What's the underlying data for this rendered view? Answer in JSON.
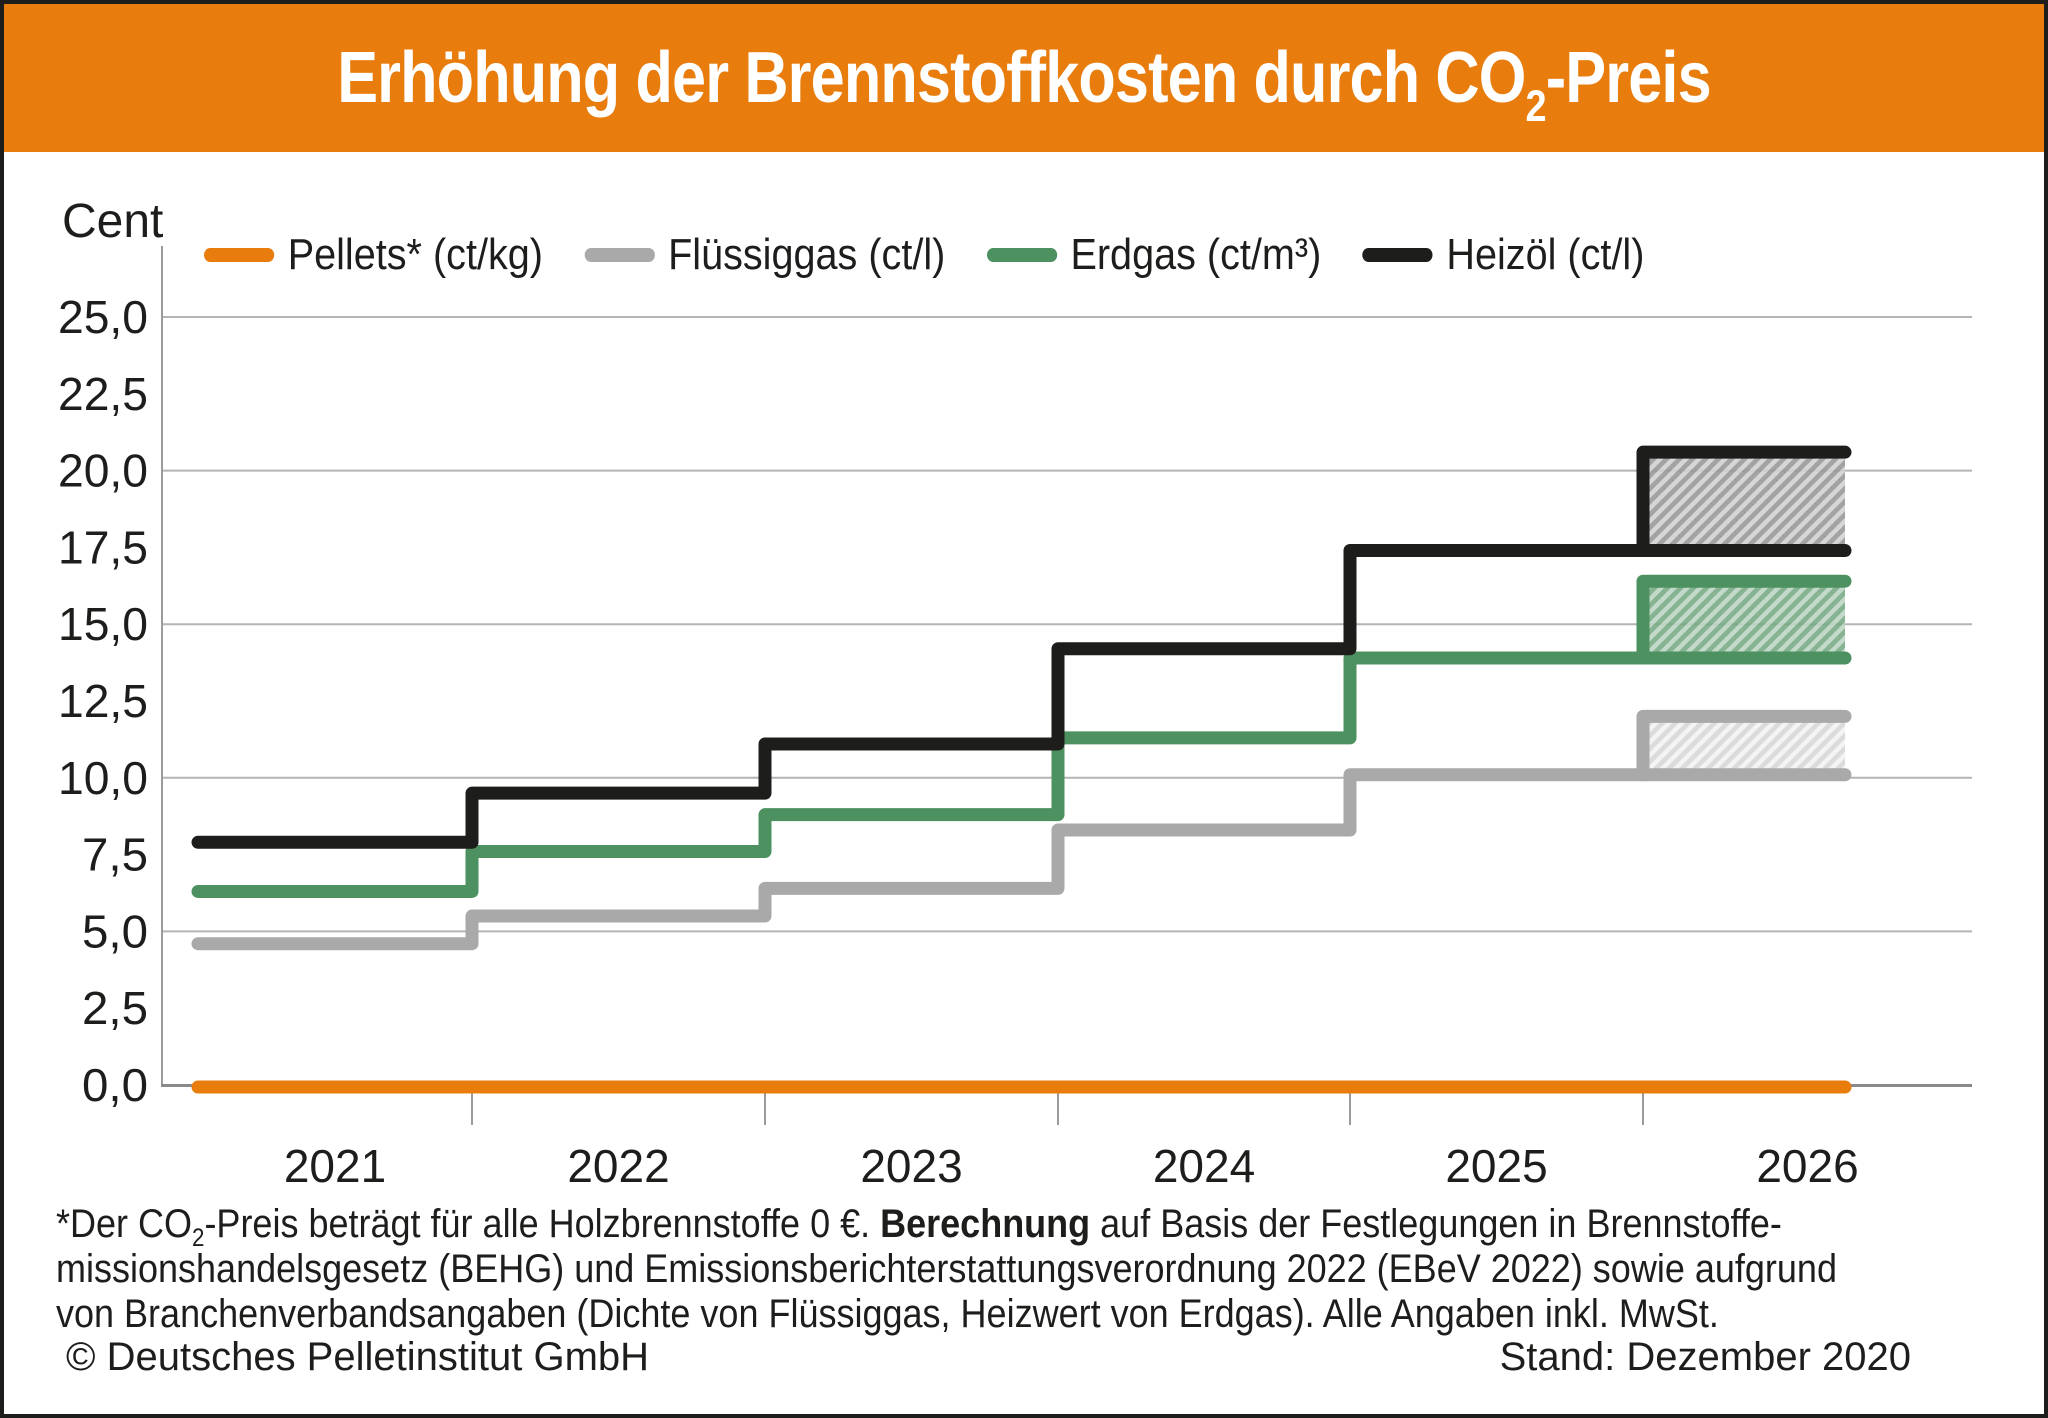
{
  "header": {
    "title_part1": "Erhöhung der Brennstoffkosten durch CO",
    "title_sub": "2",
    "title_part2": "-Preis"
  },
  "chart_data": {
    "type": "line",
    "subtype": "step",
    "title": "Erhöhung der Brennstoffkosten durch CO2-Preis",
    "unit_label": "Cent",
    "x_categories": [
      "2021",
      "2022",
      "2023",
      "2024",
      "2025",
      "2026"
    ],
    "ylim": [
      0,
      25
    ],
    "y_tick_step": 2.5,
    "y_gridline_step": 5,
    "grid": true,
    "legend_position": "top",
    "y_tick_labels": [
      "0,0",
      "2,5",
      "5,0",
      "7,5",
      "10,0",
      "12,5",
      "15,0",
      "17,5",
      "20,0",
      "22,5",
      "25,0"
    ],
    "series": [
      {
        "key": "pellets",
        "name": "Pellets* (ct/kg)",
        "color": "#e87d0e",
        "values_2021_2025": [
          0,
          0,
          0,
          0,
          0
        ],
        "range_2026": {
          "min": 0,
          "max": 0
        },
        "hatch": null
      },
      {
        "key": "fluessiggas",
        "name": "Flüssiggas (ct/l)",
        "color": "#a9a9a9",
        "values_2021_2025": [
          4.6,
          5.5,
          6.4,
          8.3,
          10.1
        ],
        "range_2026": {
          "min": 10.1,
          "max": 12.0
        },
        "hatch": {
          "base": "#d7d7d7",
          "stripe_opacity": 0.7
        }
      },
      {
        "key": "erdgas",
        "name": "Erdgas (ct/m³)",
        "color": "#4e9160",
        "values_2021_2025": [
          6.3,
          7.6,
          8.8,
          11.3,
          13.9
        ],
        "range_2026": {
          "min": 13.9,
          "max": 16.4
        },
        "hatch": {
          "base": "#79aa86",
          "stripe_opacity": 0.5
        }
      },
      {
        "key": "heizoel",
        "name": "Heizöl (ct/l)",
        "color": "#1d1d1b",
        "values_2021_2025": [
          7.9,
          9.5,
          11.1,
          14.2,
          17.4
        ],
        "range_2026": {
          "min": 17.4,
          "max": 20.6
        },
        "hatch": {
          "base": "#999999",
          "stripe_opacity": 0.55
        }
      }
    ]
  },
  "footnote": {
    "line1_a": "*Der CO",
    "line1_sub": "2",
    "line1_b": "-Preis beträgt für alle Holzbrennstoffe 0 €. ",
    "line1_bold": "Berechnung",
    "line1_c": " auf Basis der Festlegungen in Brennstoffe-",
    "line2": "missionshandelsgesetz (BEHG) und Emissionsberichterstattungsverordnung 2022 (EBeV 2022) sowie aufgrund",
    "line3": "von Branchenverbandsangaben (Dichte von Flüssiggas, Heizwert von Erdgas). Alle Angaben inkl. MwSt."
  },
  "credit": "© Deutsches Pelletinstitut GmbH",
  "stand": "Stand: Dezember 2020",
  "colors": {
    "header_bg": "#e87d0e",
    "text": "#1d1d1b",
    "gridline": "#b4b4b4",
    "y_axis": "#9b9b9b",
    "x_axis": "#8a8a8a"
  }
}
